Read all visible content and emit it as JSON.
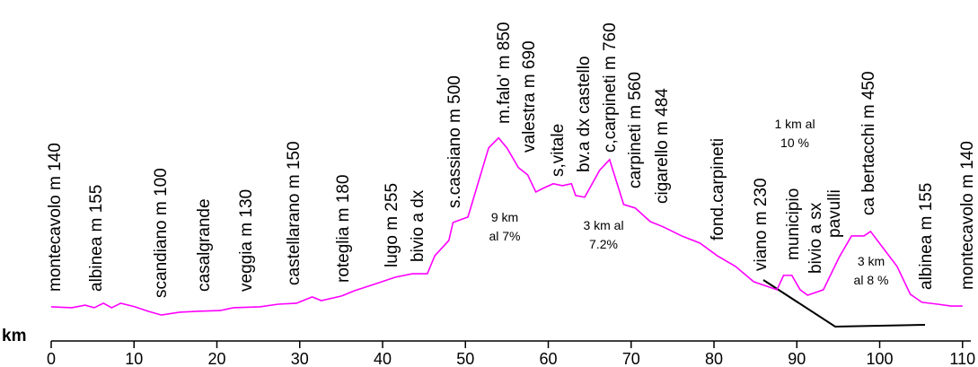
{
  "chart_data": {
    "type": "line",
    "x_label": "km",
    "x": [
      0,
      2.5,
      4.1,
      5.2,
      6.3,
      7.3,
      8.4,
      10.1,
      11.7,
      13.3,
      15.5,
      17.6,
      20.4,
      22,
      25.2,
      27.4,
      29.6,
      31.5,
      32.6,
      35,
      36.6,
      39.3,
      41.5,
      43.6,
      45.4,
      46.3,
      48,
      48.5,
      50.3,
      52.8,
      54,
      55,
      56.4,
      57.5,
      58.5,
      59.4,
      60.6,
      61.7,
      62.8,
      63.3,
      64.4,
      66.2,
      67.4,
      69.1,
      70.5,
      72.3,
      73.9,
      76.1,
      78.3,
      80.4,
      82.6,
      84.8,
      86.7,
      87.6,
      88.4,
      89.4,
      90.4,
      91.3,
      93.2,
      95.1,
      96.6,
      98.1,
      98.9,
      100.3,
      102.1,
      103.7,
      105.1,
      107,
      108.6,
      110
    ],
    "series": [
      {
        "color": "#ff00ff",
        "values": [
          141,
          137,
          148,
          137,
          156,
          137,
          156,
          141,
          122,
          106,
          118,
          122,
          125,
          137,
          141,
          152,
          156,
          183,
          167,
          186,
          209,
          240,
          266,
          281,
          281,
          357,
          422,
          498,
          521,
          814,
          856,
          814,
          730,
          700,
          627,
          643,
          662,
          654,
          662,
          612,
          605,
          719,
          764,
          574,
          559,
          502,
          479,
          441,
          411,
          357,
          312,
          247,
          224,
          213,
          274,
          274,
          213,
          190,
          213,
          350,
          441,
          441,
          460,
          395,
          312,
          194,
          160,
          152,
          144,
          144
        ]
      }
    ],
    "xlim": [
      0,
      111
    ],
    "xticks": [
      0,
      10,
      20,
      30,
      40,
      50,
      60,
      70,
      80,
      90,
      100,
      110
    ],
    "ylim": [
      0,
      1440
    ],
    "annotations": [
      "montecavolo m 140",
      "albinea m 155",
      "scandiano m 100",
      "casalgrande",
      "veggia m 130",
      "castellarano m 150",
      "roteglia m 180",
      "lugo m 255",
      "bivio a dx",
      "s.cassiano m 500",
      "m.falo' m 850",
      "valestra m 690",
      "s,vitale",
      "bv.a dx castello",
      "c,carpineti m 760",
      "carpineti m 560",
      "cigarello m 484",
      "fond.carpineti",
      "viano m 230",
      "municipio",
      "bivio a sx",
      "pavulli",
      "ca bertacchi m 450",
      "albinea m 155",
      "montecavolo m 140"
    ],
    "notes": [
      [
        "9 km",
        "al 7%"
      ],
      [
        "3 km  al",
        "7.2%"
      ],
      [
        "1 km  al",
        "10 %"
      ],
      [
        "3 km",
        "al 8 %"
      ]
    ]
  }
}
